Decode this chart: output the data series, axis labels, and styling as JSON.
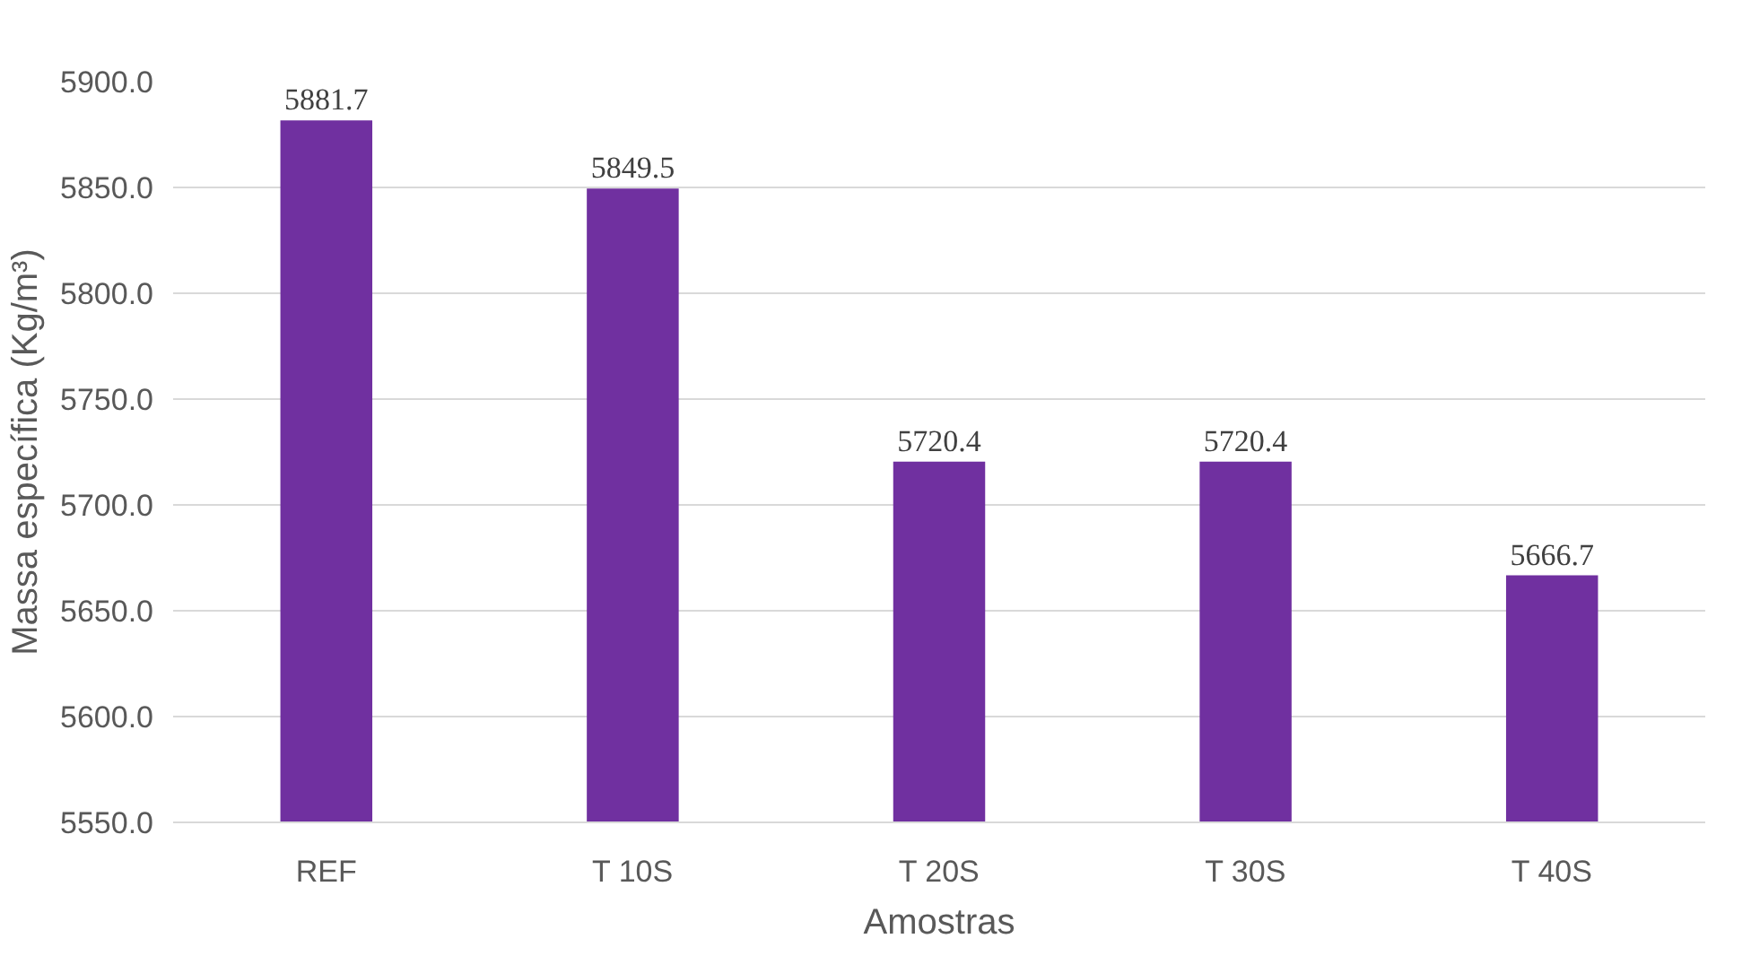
{
  "chart_data": {
    "type": "bar",
    "xlabel": "Amostras",
    "ylabel": "Massa específica (Kg/m³)",
    "categories": [
      "REF",
      "T 10S",
      "T 20S",
      "T 30S",
      "T 40S"
    ],
    "values": [
      5881.7,
      5849.5,
      5720.4,
      5720.4,
      5666.7
    ],
    "color": "#7030a0",
    "ylim": [
      5550,
      5900
    ],
    "yticks": [
      {
        "value": 5550,
        "label": "5550.0"
      },
      {
        "value": 5600,
        "label": "5600.0"
      },
      {
        "value": 5650,
        "label": "5650.0"
      },
      {
        "value": 5700,
        "label": "5700.0"
      },
      {
        "value": 5750,
        "label": "5750.0"
      },
      {
        "value": 5800,
        "label": "5800.0"
      },
      {
        "value": 5850,
        "label": "5850.0"
      },
      {
        "value": 5900,
        "label": "5900.0"
      }
    ],
    "grid": "y",
    "data_labels": true
  }
}
